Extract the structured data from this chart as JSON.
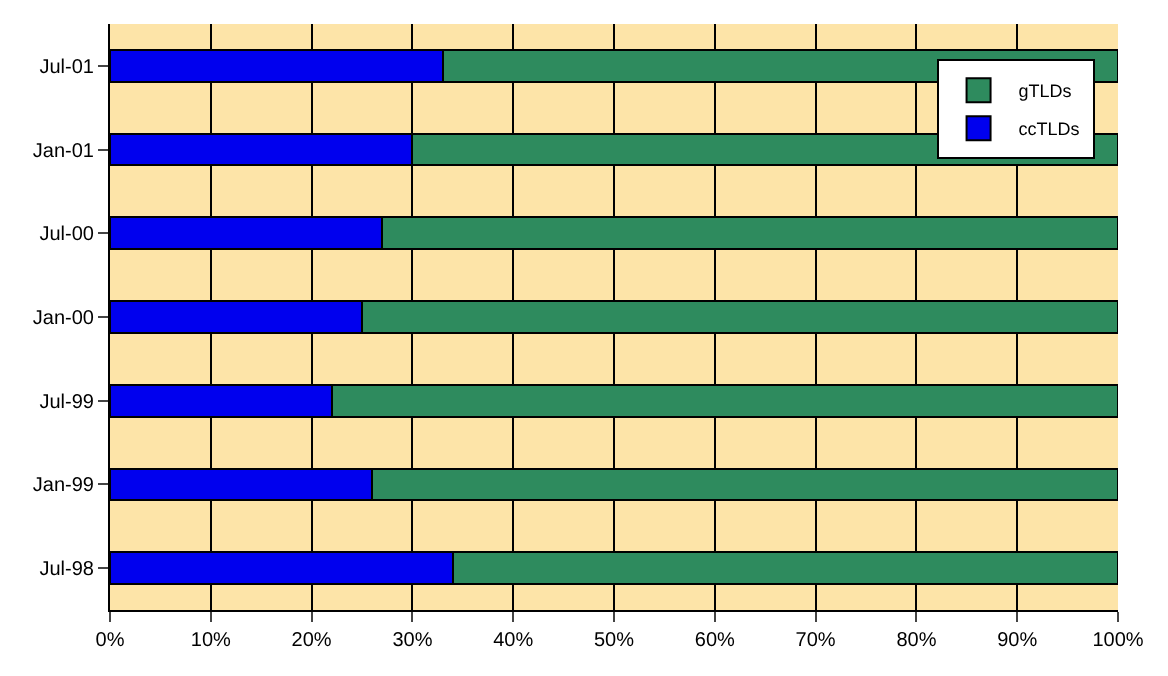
{
  "chart_data": {
    "type": "bar",
    "orientation": "horizontal",
    "stacked": true,
    "categories": [
      "Jul-01",
      "Jan-01",
      "Jul-00",
      "Jan-00",
      "Jul-99",
      "Jan-99",
      "Jul-98"
    ],
    "series": [
      {
        "name": "ccTLDs",
        "color": "#0000ee",
        "values": [
          33,
          30,
          27,
          25,
          22,
          26,
          34
        ]
      },
      {
        "name": "gTLDs",
        "color": "#2e8b5e",
        "values": [
          67,
          70,
          73,
          75,
          78,
          74,
          66
        ]
      }
    ],
    "xlim": [
      0,
      100
    ],
    "xticks": [
      {
        "value": 0,
        "label": "0%"
      },
      {
        "value": 10,
        "label": "10%"
      },
      {
        "value": 20,
        "label": "20%"
      },
      {
        "value": 30,
        "label": "30%"
      },
      {
        "value": 40,
        "label": "40%"
      },
      {
        "value": 50,
        "label": "50%"
      },
      {
        "value": 60,
        "label": "60%"
      },
      {
        "value": 70,
        "label": "70%"
      },
      {
        "value": 80,
        "label": "80%"
      },
      {
        "value": 90,
        "label": "90%"
      },
      {
        "value": 100,
        "label": "100%"
      }
    ],
    "grid": "x",
    "legend": "top right"
  }
}
